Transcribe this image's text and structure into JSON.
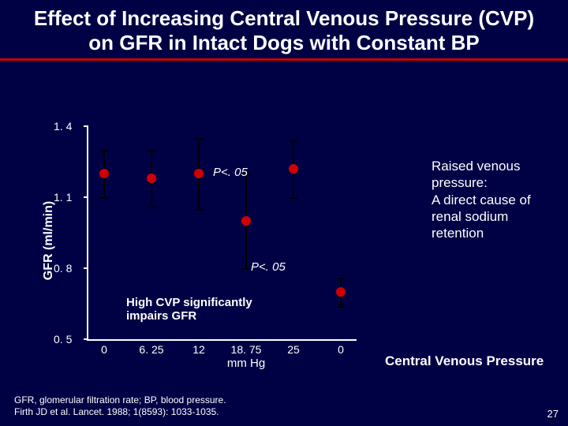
{
  "title": "Effect of Increasing Central Venous Pressure (CVP) on GFR in Intact Dogs with Constant BP",
  "chart": {
    "type": "scatter-errorbar",
    "ylabel": "GFR (ml/min)",
    "ylim": [
      0.5,
      1.4
    ],
    "yticks": [
      0.5,
      0.8,
      1.1,
      1.4
    ],
    "ytick_labels": [
      "0. 5",
      "0. 8",
      "1. 1",
      "1. 4"
    ],
    "xvals": [
      0,
      6.25,
      12,
      18.75,
      25,
      0
    ],
    "xlabels": [
      "0",
      "6. 25",
      "12",
      "18. 75",
      "25",
      "0"
    ],
    "xunit": "mm Hg",
    "points": [
      {
        "xi": 0,
        "y": 1.2,
        "err": 0.1
      },
      {
        "xi": 1,
        "y": 1.18,
        "err": 0.12
      },
      {
        "xi": 2,
        "y": 1.2,
        "err": 0.15
      },
      {
        "xi": 3,
        "y": 1.0,
        "err": 0.2
      },
      {
        "xi": 4,
        "y": 1.22,
        "err": 0.12
      },
      {
        "xi": 5,
        "y": 0.7,
        "err": 0.06
      }
    ],
    "marker_color": "#d00000",
    "errbar_color": "#000000",
    "background_color": "#000045",
    "axis_color": "#ffffff",
    "p_annotation_1": "P<. 05",
    "p_annotation_2": "P<. 05",
    "impair_annotation": "High CVP significantly impairs GFR"
  },
  "side_note": "Raised venous pressure:\nA direct cause of renal sodium retention",
  "xaxis_title": "Central Venous Pressure",
  "footnote": "GFR, glomerular filtration rate; BP, blood pressure.\nFirth JD et al. Lancet. 1988; 1(8593): 1033-1035.",
  "slide_number": "27"
}
